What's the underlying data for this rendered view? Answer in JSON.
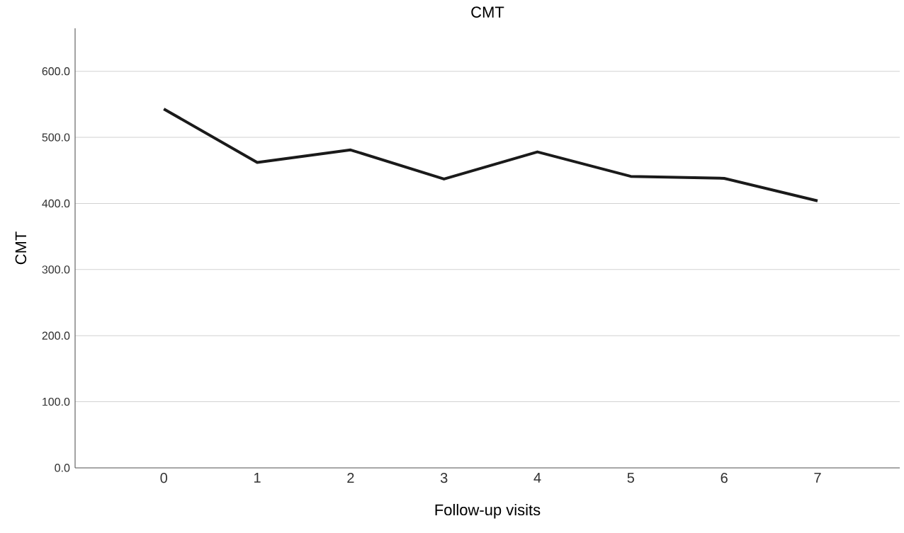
{
  "chart_data": {
    "type": "line",
    "title": "CMT",
    "xlabel": "Follow-up visits",
    "ylabel": "CMT",
    "categories": [
      "0",
      "1",
      "2",
      "3",
      "4",
      "5",
      "6",
      "7"
    ],
    "series": [
      {
        "color": "#1a1a1a",
        "values": [
          543,
          462,
          481,
          437,
          478,
          441,
          438,
          404
        ]
      }
    ],
    "ylim": [
      0,
      665
    ],
    "yticks": [
      {
        "value": 0,
        "label": "0.0"
      },
      {
        "value": 100,
        "label": "100.0"
      },
      {
        "value": 200,
        "label": "200.0"
      },
      {
        "value": 300,
        "label": "300.0"
      },
      {
        "value": 400,
        "label": "400.0"
      },
      {
        "value": 500,
        "label": "500.0"
      },
      {
        "value": 600,
        "label": "600.0"
      }
    ],
    "grid": "y",
    "marker": "none",
    "line_style": "solid"
  }
}
